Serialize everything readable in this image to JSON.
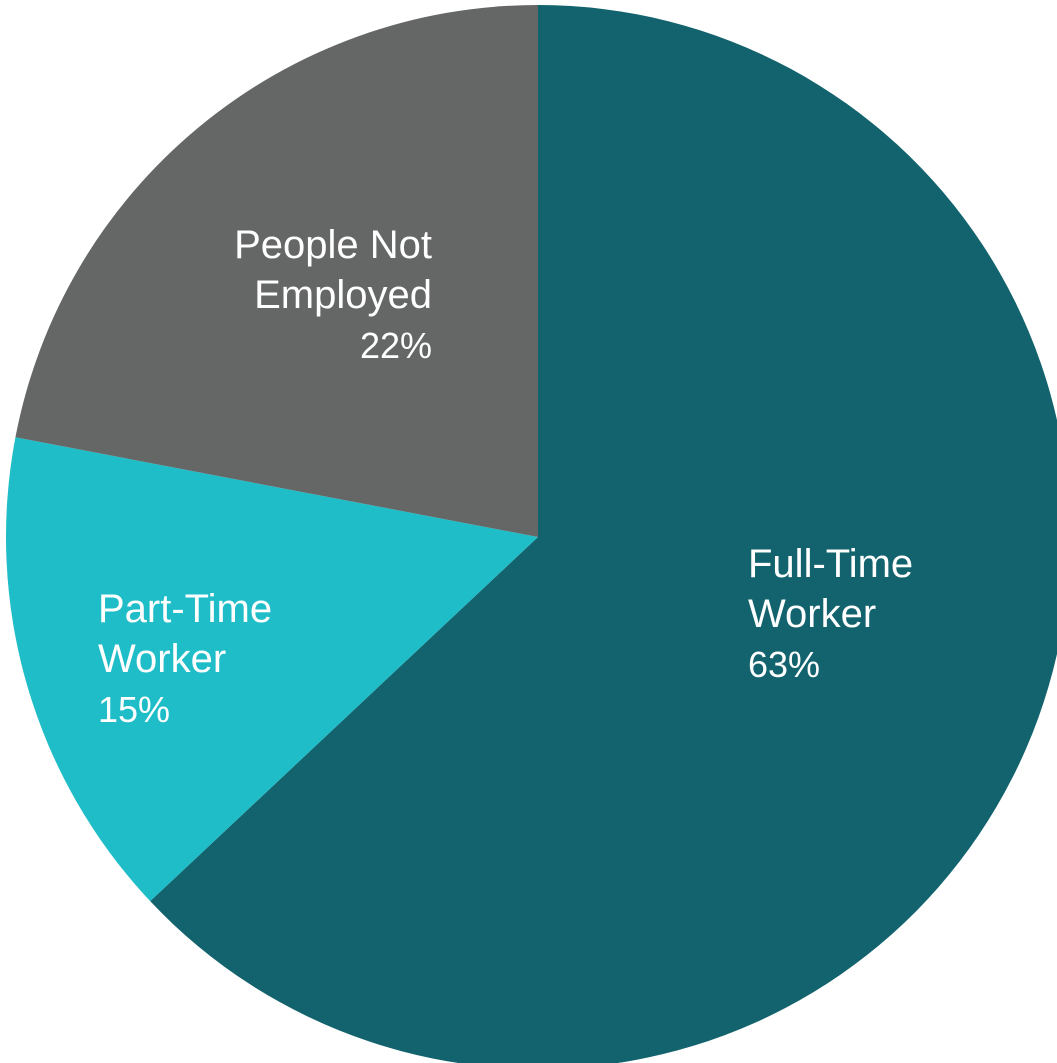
{
  "chart_data": {
    "type": "pie",
    "title": "",
    "start_angle_deg": 0,
    "direction": "clockwise",
    "slices": [
      {
        "label_lines": [
          "Full-Time",
          "Worker"
        ],
        "value": 63,
        "value_label": "63%",
        "color": "#12636d",
        "label_anchor": "start"
      },
      {
        "label_lines": [
          "Part-Time",
          "Worker"
        ],
        "value": 15,
        "value_label": "15%",
        "color": "#1fbdc8",
        "label_anchor": "start"
      },
      {
        "label_lines": [
          "People Not",
          "Employed"
        ],
        "value": 22,
        "value_label": "22%",
        "color": "#656666",
        "label_anchor": "end"
      }
    ]
  }
}
